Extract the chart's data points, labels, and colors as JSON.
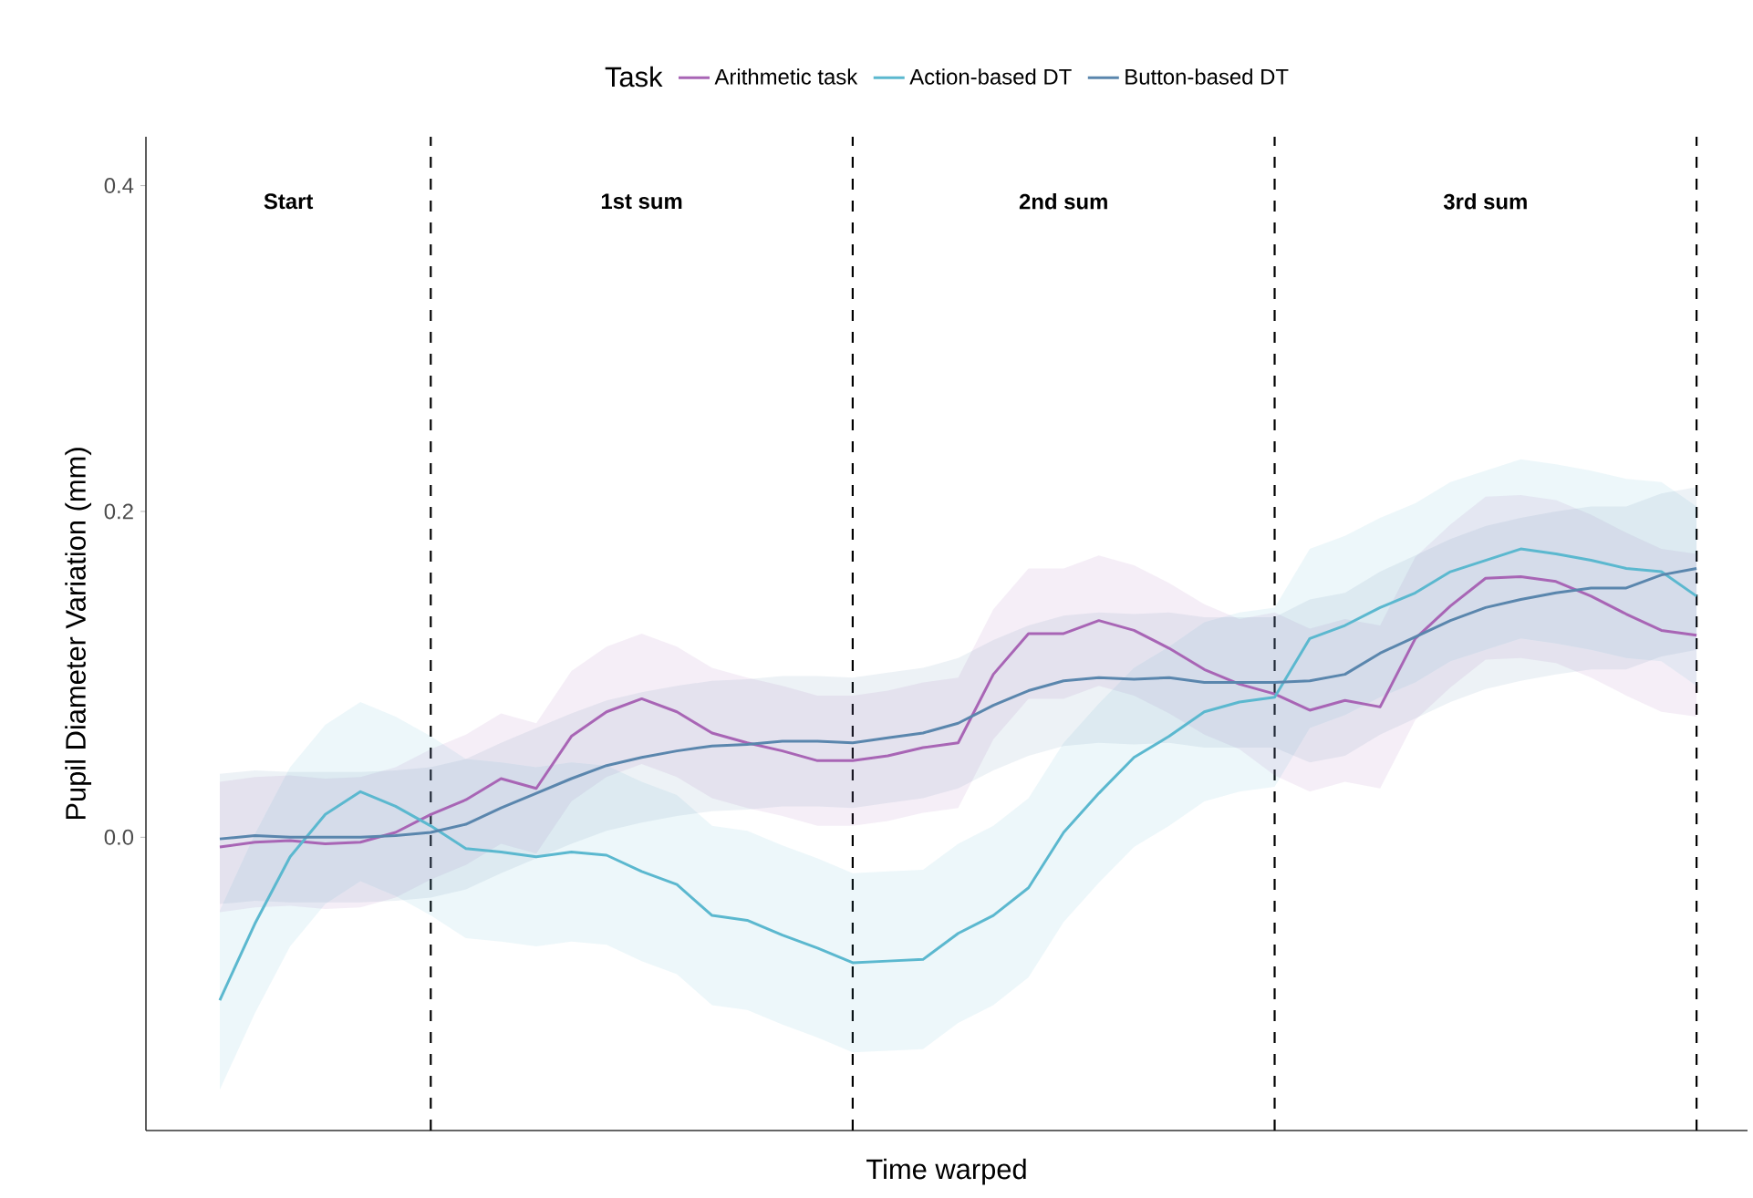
{
  "chart_data": {
    "type": "line",
    "xlabel": "Time warped",
    "ylabel": "Pupil Diameter Variation (mm)",
    "legend_title": "Task",
    "legend": "top",
    "categories": [
      null,
      null,
      null,
      null,
      null,
      null,
      null,
      null,
      null,
      null,
      null,
      null,
      null,
      null,
      null,
      null,
      null,
      null,
      null,
      null,
      null,
      null,
      null,
      null,
      null,
      null,
      null,
      null,
      null,
      null,
      null,
      null,
      null,
      null,
      null,
      null,
      null,
      null,
      null,
      null,
      null,
      null,
      null
    ],
    "ylim": [
      -0.18,
      0.43
    ],
    "yticks": [
      {
        "value": 0,
        "label": "0.0"
      },
      {
        "value": 0.2,
        "label": "0.2"
      },
      {
        "value": 0.4,
        "label": "0.4"
      }
    ],
    "grid": "x",
    "annotations": [
      "Start",
      "1st sum",
      "2nd sum",
      "3rd sum"
    ],
    "series": [
      {
        "name": "Arithmetic task",
        "color": "#a865b5",
        "values": [
          -0.006,
          -0.003,
          -0.002,
          -0.004,
          -0.003,
          0.003,
          0.014,
          0.023,
          0.036,
          0.03,
          0.062,
          0.077,
          0.085,
          0.077,
          0.064,
          0.058,
          0.053,
          0.047,
          0.047,
          0.05,
          0.055,
          0.058,
          0.1,
          0.125,
          0.125,
          0.133,
          0.127,
          0.116,
          0.103,
          0.094,
          0.088,
          0.078,
          0.084,
          0.08,
          0.122,
          0.142,
          0.159,
          0.16,
          0.157,
          0.148,
          0.137,
          0.127,
          0.124
        ],
        "lower": [
          -0.046,
          -0.043,
          -0.042,
          -0.044,
          -0.043,
          -0.037,
          -0.026,
          -0.017,
          -0.004,
          -0.01,
          0.022,
          0.037,
          0.045,
          0.037,
          0.024,
          0.018,
          0.013,
          0.007,
          0.007,
          0.01,
          0.015,
          0.018,
          0.06,
          0.085,
          0.085,
          0.093,
          0.087,
          0.076,
          0.063,
          0.054,
          0.038,
          0.028,
          0.034,
          0.03,
          0.072,
          0.092,
          0.109,
          0.11,
          0.107,
          0.098,
          0.087,
          0.077,
          0.074
        ],
        "upper": [
          0.034,
          0.037,
          0.038,
          0.036,
          0.037,
          0.043,
          0.054,
          0.063,
          0.076,
          0.07,
          0.102,
          0.117,
          0.125,
          0.117,
          0.104,
          0.098,
          0.093,
          0.087,
          0.087,
          0.09,
          0.095,
          0.098,
          0.14,
          0.165,
          0.165,
          0.173,
          0.167,
          0.156,
          0.143,
          0.134,
          0.138,
          0.128,
          0.134,
          0.13,
          0.172,
          0.192,
          0.209,
          0.21,
          0.207,
          0.198,
          0.187,
          0.177,
          0.174
        ]
      },
      {
        "name": "Action-based DT",
        "color": "#5bb8cf",
        "values": [
          -0.1,
          -0.053,
          -0.012,
          0.014,
          0.028,
          0.019,
          0.007,
          -0.007,
          -0.009,
          -0.012,
          -0.009,
          -0.011,
          -0.021,
          -0.029,
          -0.048,
          -0.051,
          -0.06,
          -0.068,
          -0.077,
          -0.076,
          -0.075,
          -0.059,
          -0.048,
          -0.031,
          0.003,
          0.027,
          0.049,
          0.062,
          0.077,
          0.083,
          0.086,
          0.122,
          0.13,
          0.141,
          0.15,
          0.163,
          0.17,
          0.177,
          0.174,
          0.17,
          0.165,
          0.163,
          0.148
        ],
        "lower": [
          -0.155,
          -0.108,
          -0.067,
          -0.041,
          -0.027,
          -0.036,
          -0.048,
          -0.062,
          -0.064,
          -0.067,
          -0.064,
          -0.066,
          -0.076,
          -0.084,
          -0.103,
          -0.106,
          -0.115,
          -0.123,
          -0.132,
          -0.131,
          -0.13,
          -0.114,
          -0.103,
          -0.086,
          -0.052,
          -0.028,
          -0.006,
          0.007,
          0.022,
          0.028,
          0.031,
          0.067,
          0.075,
          0.086,
          0.095,
          0.108,
          0.115,
          0.122,
          0.119,
          0.115,
          0.11,
          0.108,
          0.093
        ],
        "upper": [
          -0.045,
          0.002,
          0.043,
          0.069,
          0.083,
          0.074,
          0.062,
          0.048,
          0.046,
          0.043,
          0.046,
          0.044,
          0.034,
          0.026,
          0.007,
          0.004,
          -0.005,
          -0.013,
          -0.022,
          -0.021,
          -0.02,
          -0.004,
          0.007,
          0.024,
          0.058,
          0.082,
          0.104,
          0.117,
          0.132,
          0.138,
          0.141,
          0.177,
          0.185,
          0.196,
          0.205,
          0.218,
          0.225,
          0.232,
          0.229,
          0.225,
          0.22,
          0.218,
          0.203
        ]
      },
      {
        "name": "Button-based DT",
        "color": "#5a86ad",
        "values": [
          -0.001,
          0.001,
          0,
          0,
          0,
          0.001,
          0.003,
          0.008,
          0.018,
          0.027,
          0.036,
          0.044,
          0.049,
          0.053,
          0.056,
          0.057,
          0.059,
          0.059,
          0.058,
          0.061,
          0.064,
          0.07,
          0.081,
          0.09,
          0.096,
          0.098,
          0.097,
          0.098,
          0.095,
          0.095,
          0.095,
          0.096,
          0.1,
          0.113,
          0.123,
          0.133,
          0.141,
          0.146,
          0.15,
          0.153,
          0.153,
          0.161,
          0.165
        ],
        "lower": [
          -0.041,
          -0.039,
          -0.04,
          -0.04,
          -0.04,
          -0.039,
          -0.037,
          -0.032,
          -0.022,
          -0.013,
          -0.004,
          0.004,
          0.009,
          0.013,
          0.016,
          0.017,
          0.019,
          0.019,
          0.018,
          0.021,
          0.024,
          0.03,
          0.041,
          0.05,
          0.056,
          0.058,
          0.057,
          0.058,
          0.055,
          0.055,
          0.055,
          0.046,
          0.05,
          0.063,
          0.073,
          0.083,
          0.091,
          0.096,
          0.1,
          0.103,
          0.103,
          0.111,
          0.115
        ],
        "upper": [
          0.039,
          0.041,
          0.04,
          0.04,
          0.04,
          0.041,
          0.043,
          0.048,
          0.058,
          0.067,
          0.076,
          0.084,
          0.089,
          0.093,
          0.096,
          0.097,
          0.099,
          0.099,
          0.098,
          0.101,
          0.104,
          0.11,
          0.121,
          0.13,
          0.136,
          0.138,
          0.137,
          0.138,
          0.135,
          0.135,
          0.135,
          0.146,
          0.15,
          0.163,
          0.173,
          0.183,
          0.191,
          0.196,
          0.2,
          0.203,
          0.203,
          0.211,
          0.215
        ]
      }
    ]
  }
}
